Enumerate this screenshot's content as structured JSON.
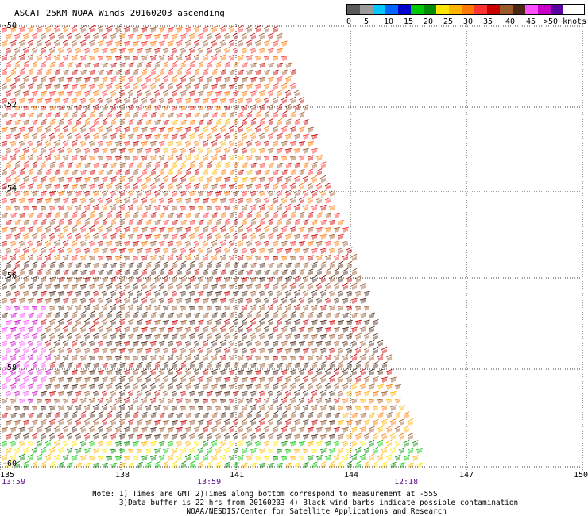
{
  "title": "ASCAT 25KM NOAA Winds 20160203 ascending",
  "legend": {
    "colors": [
      "#5a5a5a",
      "#9b9b9b",
      "#00c8ff",
      "#0064ff",
      "#0000cd",
      "#00c800",
      "#008c00",
      "#ffe600",
      "#ffb400",
      "#ff7800",
      "#ff3232",
      "#c80000",
      "#9b5a2d",
      "#4b2814",
      "#ff50ff",
      "#c800c8",
      "#5a00a0"
    ],
    "labels": [
      "0",
      "5",
      "10",
      "15",
      "20",
      "25",
      "30",
      "35",
      "40",
      "45",
      ">50 knots"
    ]
  },
  "map": {
    "lon_labels": [
      "135",
      "138",
      "141",
      "144",
      "147",
      "150"
    ],
    "lat_labels": [
      "-50",
      "-52",
      "-54",
      "-56",
      "-58",
      "-60"
    ],
    "time_labels": [
      "13:59",
      "13:59",
      "12:18"
    ]
  },
  "notes": [
    "Note: 1) Times are GMT 2)Times along bottom correspond to measurement at -55S",
    "      3)Data buffer is 22 hrs from 20160203 4) Black wind barbs indicate possible contamination",
    "                     NOAA/NESDIS/Center for Satellite Applications and Research"
  ]
}
